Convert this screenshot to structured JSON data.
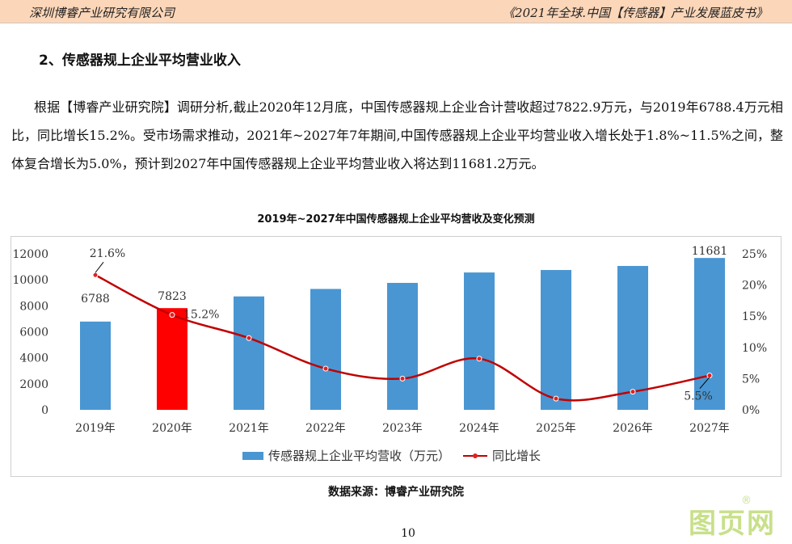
{
  "header": {
    "left": "深圳博睿产业研究有限公司",
    "right": "《2021年全球.中国【传感器】产业发展蓝皮书》"
  },
  "section_title": "2、传感器规上企业平均营业收入",
  "paragraph": "根据【博睿产业研究院】调研分析,截止2020年12月底，中国传感器规上企业合计营收超过7822.9万元，与2019年6788.4万元相比，同比增长15.2%。受市场需求推动，2021年~2027年7年期间,中国传感器规上企业平均营业收入增长处于1.8%~11.5%之间，整体复合增长为5.0%，预计到2027年中国传感器规上企业平均营业收入将达到11681.2万元。",
  "chart_data": {
    "type": "bar+line",
    "title": "2019年~2027年中国传感器规上企业平均营收及变化预测",
    "categories": [
      "2019年",
      "2020年",
      "2021年",
      "2022年",
      "2023年",
      "2024年",
      "2025年",
      "2026年",
      "2027年"
    ],
    "series": [
      {
        "name": "传感器规上企业平均营收（万元）",
        "type": "bar",
        "axis": "left",
        "values": [
          6788,
          7823,
          8723,
          9298,
          9763,
          10564,
          10754,
          11066,
          11681
        ],
        "colors": [
          "#4a96d2",
          "#ff0000",
          "#4a96d2",
          "#4a96d2",
          "#4a96d2",
          "#4a96d2",
          "#4a96d2",
          "#4a96d2",
          "#4a96d2"
        ]
      },
      {
        "name": "同比增长",
        "type": "line",
        "axis": "right",
        "values": [
          21.6,
          15.2,
          11.5,
          6.6,
          5.0,
          8.2,
          1.8,
          2.9,
          5.5
        ],
        "color": "#c00000"
      }
    ],
    "bar_labels": {
      "0": "6788",
      "1": "7823",
      "8": "11681"
    },
    "line_labels": {
      "0": "21.6%",
      "1": "15.2%",
      "8": "5.5%"
    },
    "y_left": {
      "range": [
        0,
        12000
      ],
      "ticks": [
        "0",
        "2000",
        "4000",
        "6000",
        "8000",
        "10000",
        "12000"
      ]
    },
    "y_right": {
      "range": [
        0,
        25
      ],
      "ticks": [
        "0%",
        "5%",
        "10%",
        "15%",
        "20%",
        "25%"
      ]
    },
    "legend_position": "bottom",
    "grid": false
  },
  "legend": {
    "bar": "传感器规上企业平均营收（万元）",
    "line": "同比增长"
  },
  "source": "数据来源：博睿产业研究院",
  "page_number": "10",
  "watermark": "图页网®"
}
